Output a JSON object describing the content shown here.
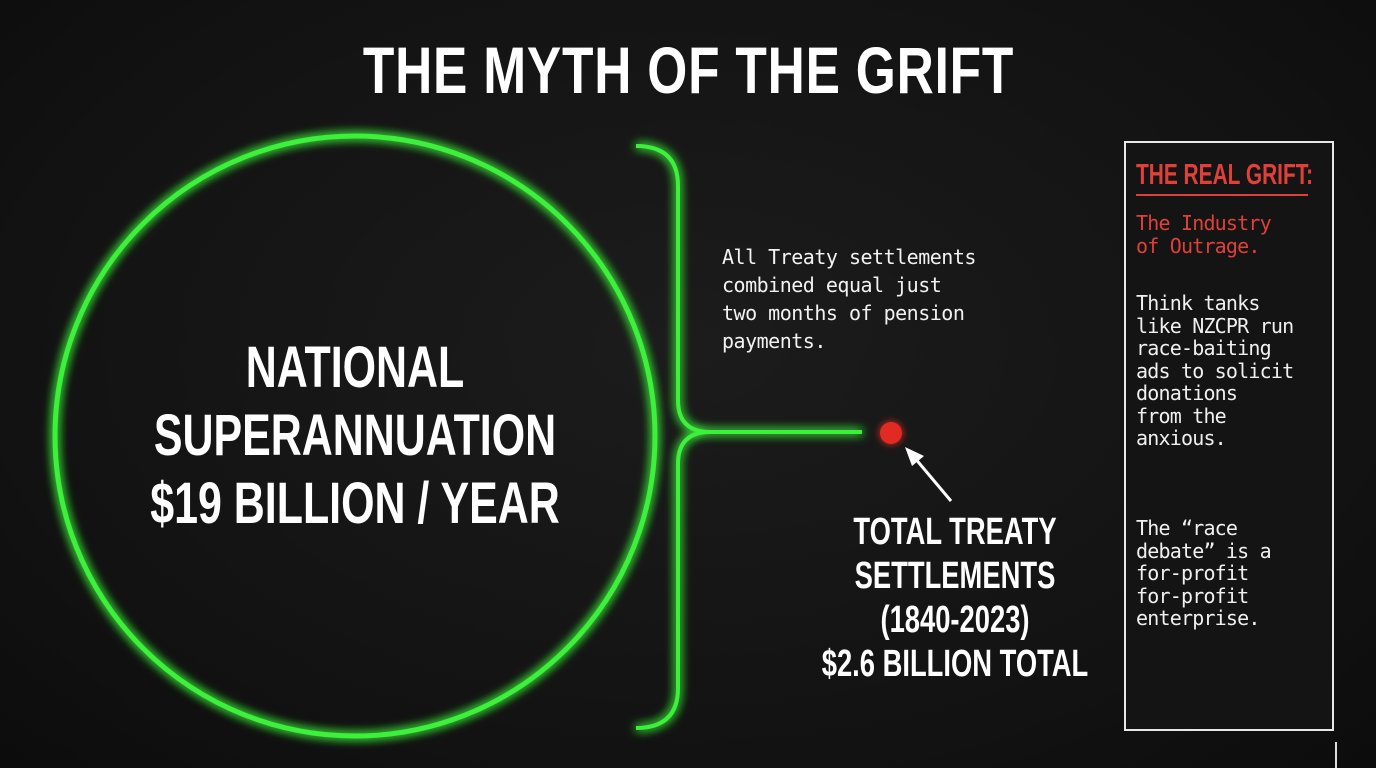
{
  "title": "THE MYTH OF THE GRIFT",
  "circle": {
    "lines": [
      "NATIONAL",
      "SUPERANNUATION",
      "$19 BILLION / YEAR"
    ],
    "color": "#3df03a"
  },
  "note": "All Treaty settlements\ncombined equal just\ntwo months of pension\npayments.",
  "dot": {
    "color": "#e02a24",
    "lines": [
      "TOTAL TREATY",
      "SETTLEMENTS",
      "(1840-2023)",
      "$2.6 BILLION TOTAL"
    ]
  },
  "sidebar": {
    "heading": "THE REAL GRIFT:",
    "subheading": "The Industry\nof Outrage.",
    "paragraph1": "Think tanks\nlike NZCPR run\nrace-baiting\nads to solicit\ndonations\nfrom the\nanxious.",
    "paragraph2": "The “race\ndebate” is a\nfor-profit\nfor-profit\nenterprise.",
    "accent": "#e0403a"
  }
}
